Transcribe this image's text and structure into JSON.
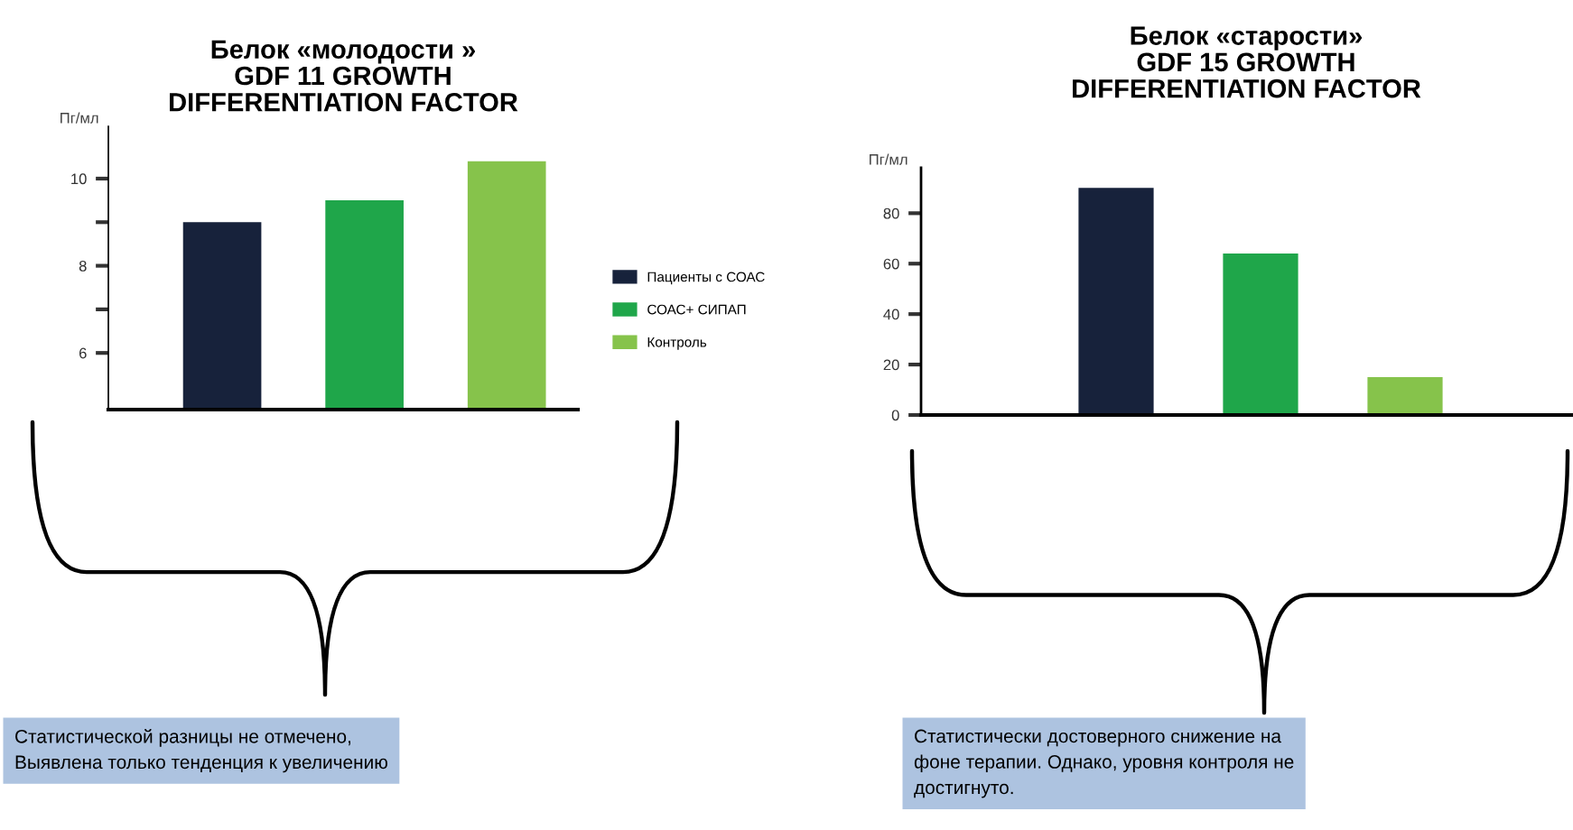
{
  "chart_data": [
    {
      "type": "bar",
      "title": "Белок «молодости »\nGDF 11 GROWTH\nDIFFERENTIATION FACTOR",
      "ylabel": "Пг/мл",
      "categories": [
        null,
        null,
        null
      ],
      "series": [
        {
          "name": "Пациенты с СОАС",
          "color": "#17223b",
          "values": [
            9.0,
            null,
            null
          ]
        },
        {
          "name": "СОАС+ СИПАП",
          "color": "#1fa64a",
          "values": [
            null,
            9.5,
            null
          ]
        },
        {
          "name": "Контроль",
          "color": "#86c34b",
          "values": [
            null,
            null,
            10.4
          ]
        }
      ],
      "ylim": [
        4.7,
        11.2
      ],
      "yticks": [
        {
          "value": 6,
          "label": "6"
        },
        {
          "value": 7,
          "label": null
        },
        {
          "value": 8,
          "label": "8"
        },
        {
          "value": 9,
          "label": null
        },
        {
          "value": 10,
          "label": "10"
        }
      ],
      "grid": false,
      "legend": "right",
      "annotations": [
        "Статистической разницы не отмечено,\nВыявлена только тенденция к увеличению"
      ]
    },
    {
      "type": "bar",
      "title": "Белок «старости»\nGDF 15 GROWTH\nDIFFERENTIATION FACTOR",
      "ylabel": "Пг/мл",
      "categories": [
        null,
        null,
        null
      ],
      "values": [
        90,
        64,
        15
      ],
      "colors": [
        "#17223b",
        "#1fa64a",
        "#86c34b"
      ],
      "ylim": [
        0,
        98
      ],
      "yticks": [
        0,
        20,
        40,
        60,
        80
      ],
      "grid": false,
      "legend": false,
      "annotations": [
        "Статистически достоверного снижение на\nфоне терапии. Однако, уровня контроля не\nдостигнуто."
      ]
    }
  ]
}
